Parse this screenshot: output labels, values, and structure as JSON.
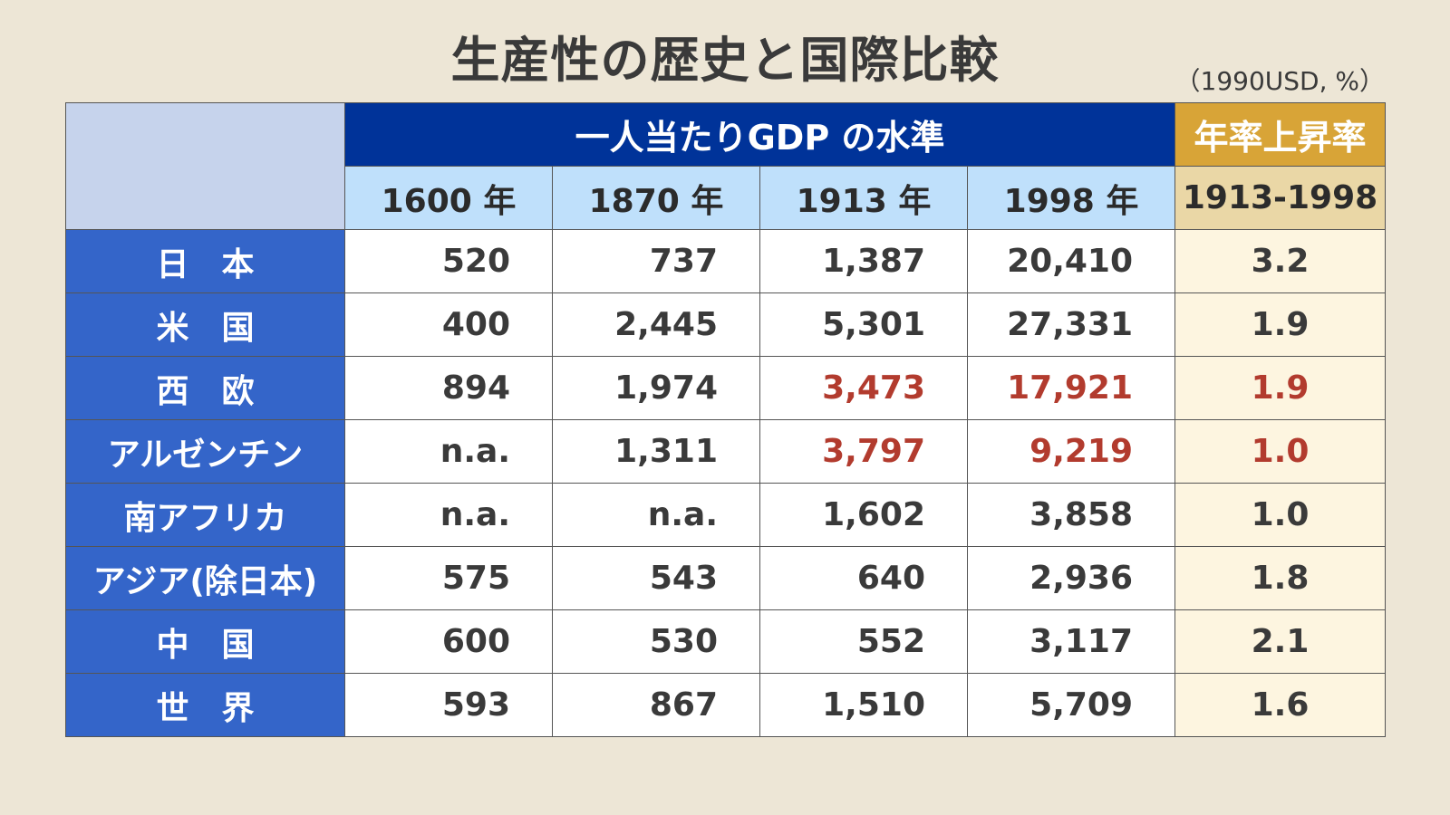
{
  "title": "生産性の歴史と国際比較",
  "unit": "（1990USD, %）",
  "chart_data": {
    "type": "table",
    "group_header_gdp": "一人当たりGDP の水準",
    "group_header_rate": "年率上昇率",
    "year_columns": [
      "1600 年",
      "1870 年",
      "1913 年",
      "1998 年"
    ],
    "rate_column": "1913-1998",
    "rows": [
      {
        "label": "日　本",
        "values": [
          "520",
          "737",
          "1,387",
          "20,410"
        ],
        "rate": "3.2"
      },
      {
        "label": "米　国",
        "values": [
          "400",
          "2,445",
          "5,301",
          "27,331"
        ],
        "rate": "1.9"
      },
      {
        "label": "西　欧",
        "values": [
          "894",
          "1,974",
          "3,473",
          "17,921"
        ],
        "rate": "1.9"
      },
      {
        "label": "アルゼンチン",
        "values": [
          "n.a.",
          "1,311",
          "3,797",
          "9,219"
        ],
        "rate": "1.0"
      },
      {
        "label": "南アフリカ",
        "values": [
          "n.a.",
          "n.a.",
          "1,602",
          "3,858"
        ],
        "rate": "1.0"
      },
      {
        "label": "アジア(除日本)",
        "values": [
          "575",
          "543",
          "640",
          "2,936"
        ],
        "rate": "1.8"
      },
      {
        "label": "中　国",
        "values": [
          "600",
          "530",
          "552",
          "3,117"
        ],
        "rate": "2.1"
      },
      {
        "label": "世　界",
        "values": [
          "593",
          "867",
          "1,510",
          "5,709"
        ],
        "rate": "1.6"
      }
    ],
    "highlight_color": "#b23b2e",
    "highlighted_cells": [
      {
        "row": 2,
        "cols": [
          2,
          3,
          "rate"
        ]
      },
      {
        "row": 3,
        "cols": [
          2,
          3,
          "rate"
        ]
      }
    ]
  }
}
